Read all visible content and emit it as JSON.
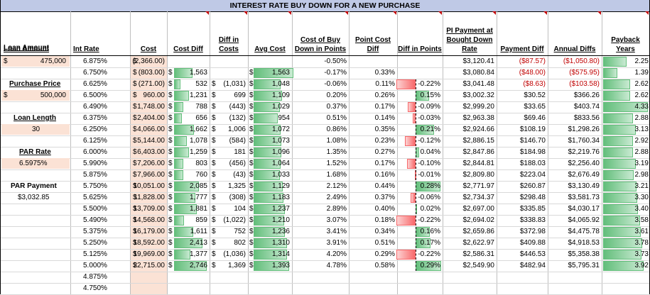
{
  "title": "INTEREST RATE BUY DOWN FOR A NEW PURCHASE",
  "headers": [
    "Loan Amount",
    "Int Rate",
    "Cost",
    "Cost Diff",
    "Diff in Costs",
    "Avg Cost",
    "Cost of Buy Down in Points",
    "Point Cost Diff",
    "Diff in Points",
    "PI Payment at Bought Down Rate",
    "Payment Diff",
    "Annual Diffs",
    "Payback Years"
  ],
  "inputs": {
    "loan_amount_value": "475,000",
    "purchase_price_label": "Purchase Price",
    "purchase_price_value": "500,000",
    "loan_length_label": "Loan Length",
    "loan_length_value": "30",
    "par_rate_label": "PAR Rate",
    "par_rate_value": "6.5975%",
    "par_payment_label": "PAR Payment",
    "par_payment_value": "$3,032.85",
    "currency_symbol": "$"
  },
  "rows": [
    {
      "rate": "6.875%",
      "cost": "(2,366.00)",
      "cost_neg": true,
      "cost_diff": "",
      "cost_diff_bar": 0,
      "diff_costs": "",
      "avg_cost": "",
      "avg_bar": 0,
      "pts": "-0.50%",
      "pt_diff": "",
      "diff_pts": "",
      "diff_pts_val": 0,
      "pi": "$3,120.41",
      "pay_diff": "($87.57)",
      "pay_neg": true,
      "annual": "($1,050.80)",
      "payback": "2.25",
      "payback_val": 2.25
    },
    {
      "rate": "6.750%",
      "cost": "(803.00)",
      "cost_neg": true,
      "cost_diff": "1,563",
      "cost_diff_bar": 1563,
      "diff_costs": "",
      "avg_cost": "1,563",
      "avg_bar": 1563,
      "pts": "-0.17%",
      "pt_diff": "0.33%",
      "diff_pts": "",
      "diff_pts_val": 0,
      "pi": "$3,080.84",
      "pay_diff": "($48.00)",
      "pay_neg": true,
      "annual": "($575.95)",
      "payback": "1.39",
      "payback_val": 1.39
    },
    {
      "rate": "6.625%",
      "cost": "(271.00)",
      "cost_neg": true,
      "cost_diff": "532",
      "cost_diff_bar": 532,
      "diff_costs": "(1,031)",
      "avg_cost": "1,048",
      "avg_bar": 1048,
      "pts": "-0.06%",
      "pt_diff": "0.11%",
      "diff_pts": "-0.22%",
      "diff_pts_val": -0.22,
      "pi": "$3,041.48",
      "pay_diff": "($8.63)",
      "pay_neg": true,
      "annual": "($103.58)",
      "payback": "2.62",
      "payback_val": 2.62
    },
    {
      "rate": "6.500%",
      "cost": "960.00",
      "cost_neg": false,
      "cost_diff": "1,231",
      "cost_diff_bar": 1231,
      "diff_costs": "699",
      "avg_cost": "1,109",
      "avg_bar": 1109,
      "pts": "0.20%",
      "pt_diff": "0.26%",
      "diff_pts": "0.15%",
      "diff_pts_val": 0.15,
      "pi": "$3,002.32",
      "pay_diff": "$30.52",
      "pay_neg": false,
      "annual": "$366.26",
      "payback": "2.62",
      "payback_val": 2.62
    },
    {
      "rate": "6.490%",
      "cost": "1,748.00",
      "cost_neg": false,
      "cost_diff": "788",
      "cost_diff_bar": 788,
      "diff_costs": "(443)",
      "avg_cost": "1,029",
      "avg_bar": 1029,
      "pts": "0.37%",
      "pt_diff": "0.17%",
      "diff_pts": "-0.09%",
      "diff_pts_val": -0.09,
      "pi": "$2,999.20",
      "pay_diff": "$33.65",
      "pay_neg": false,
      "annual": "$403.74",
      "payback": "4.33",
      "payback_val": 4.33
    },
    {
      "rate": "6.375%",
      "cost": "2,404.00",
      "cost_neg": false,
      "cost_diff": "656",
      "cost_diff_bar": 656,
      "diff_costs": "(132)",
      "avg_cost": "954",
      "avg_bar": 954,
      "pts": "0.51%",
      "pt_diff": "0.14%",
      "diff_pts": "-0.03%",
      "diff_pts_val": -0.03,
      "pi": "$2,963.38",
      "pay_diff": "$69.46",
      "pay_neg": false,
      "annual": "$833.56",
      "payback": "2.88",
      "payback_val": 2.88
    },
    {
      "rate": "6.250%",
      "cost": "4,066.00",
      "cost_neg": false,
      "cost_diff": "1,662",
      "cost_diff_bar": 1662,
      "diff_costs": "1,006",
      "avg_cost": "1,072",
      "avg_bar": 1072,
      "pts": "0.86%",
      "pt_diff": "0.35%",
      "diff_pts": "0.21%",
      "diff_pts_val": 0.21,
      "pi": "$2,924.66",
      "pay_diff": "$108.19",
      "pay_neg": false,
      "annual": "$1,298.26",
      "payback": "3.13",
      "payback_val": 3.13
    },
    {
      "rate": "6.125%",
      "cost": "5,144.00",
      "cost_neg": false,
      "cost_diff": "1,078",
      "cost_diff_bar": 1078,
      "diff_costs": "(584)",
      "avg_cost": "1,073",
      "avg_bar": 1073,
      "pts": "1.08%",
      "pt_diff": "0.23%",
      "diff_pts": "-0.12%",
      "diff_pts_val": -0.12,
      "pi": "$2,886.15",
      "pay_diff": "$146.70",
      "pay_neg": false,
      "annual": "$1,760.34",
      "payback": "2.92",
      "payback_val": 2.92
    },
    {
      "rate": "6.000%",
      "cost": "6,403.00",
      "cost_neg": false,
      "cost_diff": "1,259",
      "cost_diff_bar": 1259,
      "diff_costs": "181",
      "avg_cost": "1,096",
      "avg_bar": 1096,
      "pts": "1.35%",
      "pt_diff": "0.27%",
      "diff_pts": "0.04%",
      "diff_pts_val": 0.04,
      "pi": "$2,847.86",
      "pay_diff": "$184.98",
      "pay_neg": false,
      "annual": "$2,219.76",
      "payback": "2.88",
      "payback_val": 2.88
    },
    {
      "rate": "5.990%",
      "cost": "7,206.00",
      "cost_neg": false,
      "cost_diff": "803",
      "cost_diff_bar": 803,
      "diff_costs": "(456)",
      "avg_cost": "1,064",
      "avg_bar": 1064,
      "pts": "1.52%",
      "pt_diff": "0.17%",
      "diff_pts": "-0.10%",
      "diff_pts_val": -0.1,
      "pi": "$2,844.81",
      "pay_diff": "$188.03",
      "pay_neg": false,
      "annual": "$2,256.40",
      "payback": "3.19",
      "payback_val": 3.19
    },
    {
      "rate": "5.875%",
      "cost": "7,966.00",
      "cost_neg": false,
      "cost_diff": "760",
      "cost_diff_bar": 760,
      "diff_costs": "(43)",
      "avg_cost": "1,033",
      "avg_bar": 1033,
      "pts": "1.68%",
      "pt_diff": "0.16%",
      "diff_pts": "-0.01%",
      "diff_pts_val": -0.01,
      "pi": "$2,809.80",
      "pay_diff": "$223.04",
      "pay_neg": false,
      "annual": "$2,676.49",
      "payback": "2.98",
      "payback_val": 2.98
    },
    {
      "rate": "5.750%",
      "cost": "10,051.00",
      "cost_neg": false,
      "cost_diff": "2,085",
      "cost_diff_bar": 2085,
      "diff_costs": "1,325",
      "avg_cost": "1,129",
      "avg_bar": 1129,
      "pts": "2.12%",
      "pt_diff": "0.44%",
      "diff_pts": "0.28%",
      "diff_pts_val": 0.28,
      "pi": "$2,771.97",
      "pay_diff": "$260.87",
      "pay_neg": false,
      "annual": "$3,130.49",
      "payback": "3.21",
      "payback_val": 3.21
    },
    {
      "rate": "5.625%",
      "cost": "11,828.00",
      "cost_neg": false,
      "cost_diff": "1,777",
      "cost_diff_bar": 1777,
      "diff_costs": "(308)",
      "avg_cost": "1,183",
      "avg_bar": 1183,
      "pts": "2.49%",
      "pt_diff": "0.37%",
      "diff_pts": "-0.06%",
      "diff_pts_val": -0.06,
      "pi": "$2,734.37",
      "pay_diff": "$298.48",
      "pay_neg": false,
      "annual": "$3,581.73",
      "payback": "3.30",
      "payback_val": 3.3
    },
    {
      "rate": "5.500%",
      "cost": "13,709.00",
      "cost_neg": false,
      "cost_diff": "1,881",
      "cost_diff_bar": 1881,
      "diff_costs": "104",
      "avg_cost": "1,237",
      "avg_bar": 1237,
      "pts": "2.89%",
      "pt_diff": "0.40%",
      "diff_pts": "0.02%",
      "diff_pts_val": 0.02,
      "pi": "$2,697.00",
      "pay_diff": "$335.85",
      "pay_neg": false,
      "annual": "$4,030.17",
      "payback": "3.40",
      "payback_val": 3.4
    },
    {
      "rate": "5.490%",
      "cost": "14,568.00",
      "cost_neg": false,
      "cost_diff": "859",
      "cost_diff_bar": 859,
      "diff_costs": "(1,022)",
      "avg_cost": "1,210",
      "avg_bar": 1210,
      "pts": "3.07%",
      "pt_diff": "0.18%",
      "diff_pts": "-0.22%",
      "diff_pts_val": -0.22,
      "pi": "$2,694.02",
      "pay_diff": "$338.83",
      "pay_neg": false,
      "annual": "$4,065.92",
      "payback": "3.58",
      "payback_val": 3.58
    },
    {
      "rate": "5.375%",
      "cost": "16,179.00",
      "cost_neg": false,
      "cost_diff": "1,611",
      "cost_diff_bar": 1611,
      "diff_costs": "752",
      "avg_cost": "1,236",
      "avg_bar": 1236,
      "pts": "3.41%",
      "pt_diff": "0.34%",
      "diff_pts": "0.16%",
      "diff_pts_val": 0.16,
      "pi": "$2,659.86",
      "pay_diff": "$372.98",
      "pay_neg": false,
      "annual": "$4,475.78",
      "payback": "3.61",
      "payback_val": 3.61
    },
    {
      "rate": "5.250%",
      "cost": "18,592.00",
      "cost_neg": false,
      "cost_diff": "2,413",
      "cost_diff_bar": 2413,
      "diff_costs": "802",
      "avg_cost": "1,310",
      "avg_bar": 1310,
      "pts": "3.91%",
      "pt_diff": "0.51%",
      "diff_pts": "0.17%",
      "diff_pts_val": 0.17,
      "pi": "$2,622.97",
      "pay_diff": "$409.88",
      "pay_neg": false,
      "annual": "$4,918.53",
      "payback": "3.78",
      "payback_val": 3.78
    },
    {
      "rate": "5.125%",
      "cost": "19,969.00",
      "cost_neg": false,
      "cost_diff": "1,377",
      "cost_diff_bar": 1377,
      "diff_costs": "(1,036)",
      "avg_cost": "1,314",
      "avg_bar": 1314,
      "pts": "4.20%",
      "pt_diff": "0.29%",
      "diff_pts": "-0.22%",
      "diff_pts_val": -0.22,
      "pi": "$2,586.31",
      "pay_diff": "$446.53",
      "pay_neg": false,
      "annual": "$5,358.38",
      "payback": "3.73",
      "payback_val": 3.73
    },
    {
      "rate": "5.000%",
      "cost": "22,715.00",
      "cost_neg": false,
      "cost_diff": "2,746",
      "cost_diff_bar": 2746,
      "diff_costs": "1,369",
      "avg_cost": "1,393",
      "avg_bar": 1393,
      "pts": "4.78%",
      "pt_diff": "0.58%",
      "diff_pts": "0.29%",
      "diff_pts_val": 0.29,
      "pi": "$2,549.90",
      "pay_diff": "$482.94",
      "pay_neg": false,
      "annual": "$5,795.31",
      "payback": "3.92",
      "payback_val": 3.92
    },
    {
      "rate": "4.875%",
      "cost": "",
      "cost_neg": false,
      "cost_diff": "",
      "cost_diff_bar": 0,
      "diff_costs": "",
      "avg_cost": "",
      "avg_bar": 0,
      "pts": "",
      "pt_diff": "",
      "diff_pts": "",
      "diff_pts_val": 0,
      "pi": "",
      "pay_diff": "",
      "pay_neg": false,
      "annual": "",
      "payback": "",
      "payback_val": 0
    },
    {
      "rate": "4.750%",
      "cost": "",
      "cost_neg": false,
      "cost_diff": "",
      "cost_diff_bar": 0,
      "diff_costs": "",
      "avg_cost": "",
      "avg_bar": 0,
      "pts": "",
      "pt_diff": "",
      "diff_pts": "",
      "diff_pts_val": 0,
      "pi": "",
      "pay_diff": "",
      "pay_neg": false,
      "annual": "",
      "payback": "",
      "payback_val": 0
    }
  ],
  "colors": {
    "negative": "#c00000",
    "bar_green": "#63be7b",
    "bar_red": "#f8696b",
    "header_fill": "#bfc9e6",
    "input_fill": "#fbe2d5"
  }
}
